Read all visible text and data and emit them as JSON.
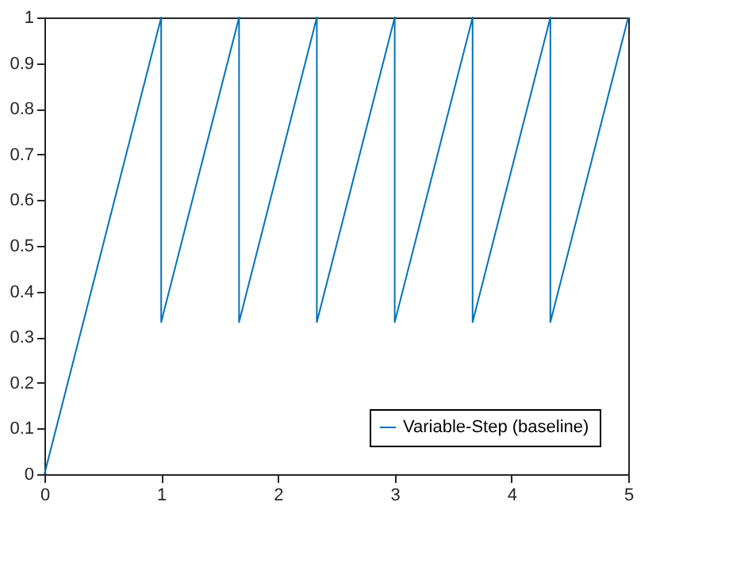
{
  "chart_data": {
    "type": "line",
    "x": [
      0,
      1,
      1,
      1.667,
      1.667,
      2.333,
      2.333,
      3,
      3,
      3.667,
      3.667,
      4.333,
      4.333,
      5
    ],
    "series": [
      {
        "name": "Variable-Step (baseline)",
        "color": "#0072bd",
        "values": [
          0,
          1,
          0.333,
          1,
          0.333,
          1,
          0.333,
          1,
          0.333,
          1,
          0.333,
          1,
          0.333,
          1
        ]
      }
    ],
    "xlim": [
      0,
      5
    ],
    "ylim": [
      0,
      1
    ],
    "xticks": [
      0,
      1,
      2,
      3,
      4,
      5
    ],
    "yticks": [
      0,
      0.1,
      0.2,
      0.3,
      0.4,
      0.5,
      0.6,
      0.7,
      0.8,
      0.9,
      1
    ],
    "legend": "bottom right",
    "grid": false
  }
}
